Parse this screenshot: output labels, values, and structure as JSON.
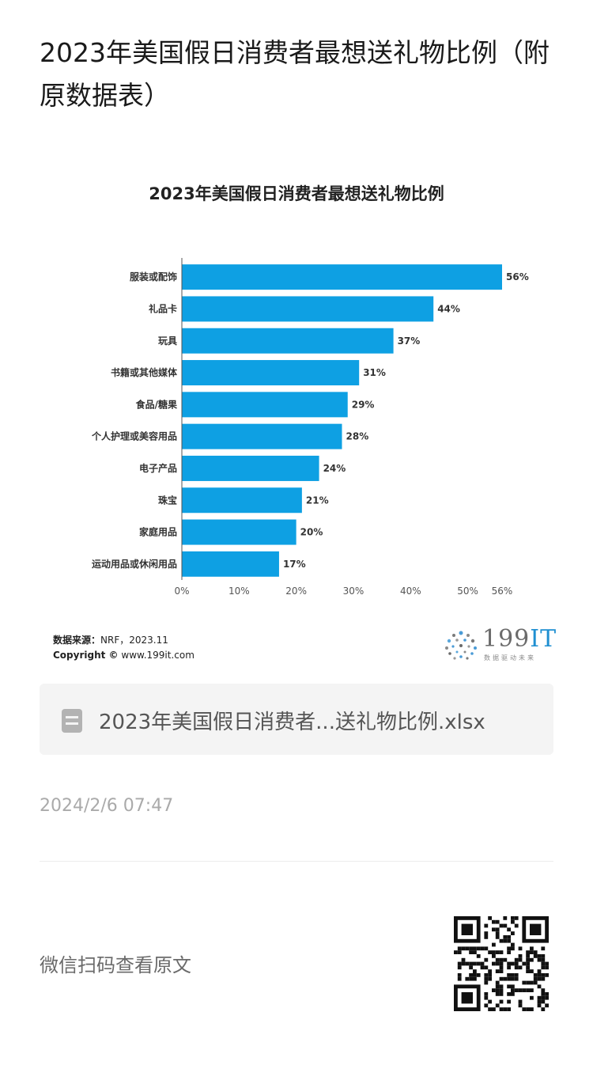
{
  "article": {
    "title": "2023年美国假日消费者最想送礼物比例（附原数据表）",
    "timestamp": "2024/2/6 07:47",
    "scan_prompt": "微信扫码查看原文"
  },
  "attachment": {
    "icon": "document-icon",
    "file_name": "2023年美国假日消费者...送礼物比例.xlsx"
  },
  "source": {
    "label": "数据来源：",
    "value": "NRF，2023.11",
    "copyright_label": "Copyright ©",
    "copyright_value": "www.199it.com"
  },
  "logo": {
    "main": "199",
    "accent": "IT",
    "tagline": "数据驱动未来"
  },
  "colors": {
    "bar": "#0ea0e3",
    "axis": "#555555",
    "title_text": "#1a1a1a"
  },
  "chart_data": {
    "type": "bar",
    "orientation": "horizontal",
    "title": "2023年美国假日消费者最想送礼物比例",
    "categories": [
      "服装或配饰",
      "礼品卡",
      "玩具",
      "书籍或其他媒体",
      "食品/糖果",
      "个人护理或美容用品",
      "电子产品",
      "珠宝",
      "家庭用品",
      "运动用品或休闲用品"
    ],
    "values": [
      56,
      44,
      37,
      31,
      29,
      28,
      24,
      21,
      20,
      17
    ],
    "value_labels": [
      "56%",
      "44%",
      "37%",
      "31%",
      "29%",
      "28%",
      "24%",
      "21%",
      "20%",
      "17%"
    ],
    "xticks": [
      0,
      10,
      20,
      30,
      40,
      50,
      56
    ],
    "xtick_labels": [
      "0%",
      "10%",
      "20%",
      "30%",
      "40%",
      "50%",
      "56%"
    ],
    "xlim": [
      0,
      56
    ],
    "grid": false,
    "legend": "none"
  }
}
